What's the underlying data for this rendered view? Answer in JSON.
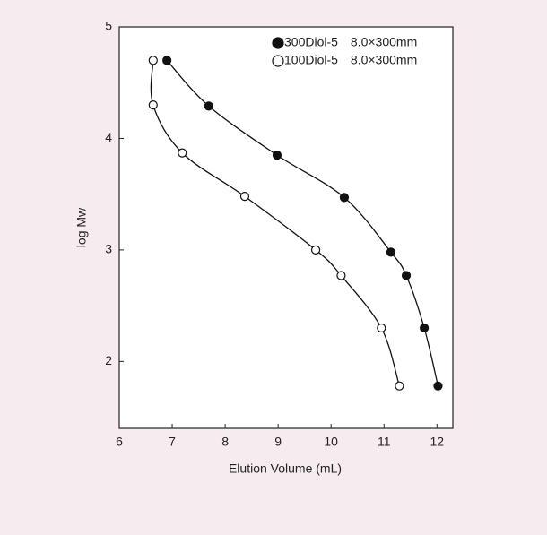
{
  "chart_data": {
    "type": "scatter",
    "xlabel": "Elution Volume (mL)",
    "ylabel": "log Mw",
    "xlim": [
      6,
      12.3
    ],
    "ylim": [
      1.4,
      5
    ],
    "xticks": [
      6,
      7,
      8,
      9,
      10,
      11,
      12
    ],
    "yticks": [
      2,
      3,
      4,
      5
    ],
    "legend": "upper right",
    "series": [
      {
        "name": "300Diol-5　8.0×300mm",
        "color": "#111111",
        "filled": true,
        "x": [
          6.9,
          7.69,
          8.98,
          10.25,
          11.13,
          11.42,
          11.76,
          12.02
        ],
        "values": [
          4.7,
          4.29,
          3.85,
          3.47,
          2.98,
          2.77,
          2.3,
          1.78
        ]
      },
      {
        "name": "100Diol-5　8.0×300mm",
        "color": "#111111",
        "filled": false,
        "x": [
          6.64,
          6.64,
          7.19,
          8.37,
          9.71,
          10.19,
          10.95,
          11.29
        ],
        "values": [
          4.7,
          4.3,
          3.87,
          3.48,
          3.0,
          2.77,
          2.3,
          1.78
        ]
      }
    ]
  }
}
